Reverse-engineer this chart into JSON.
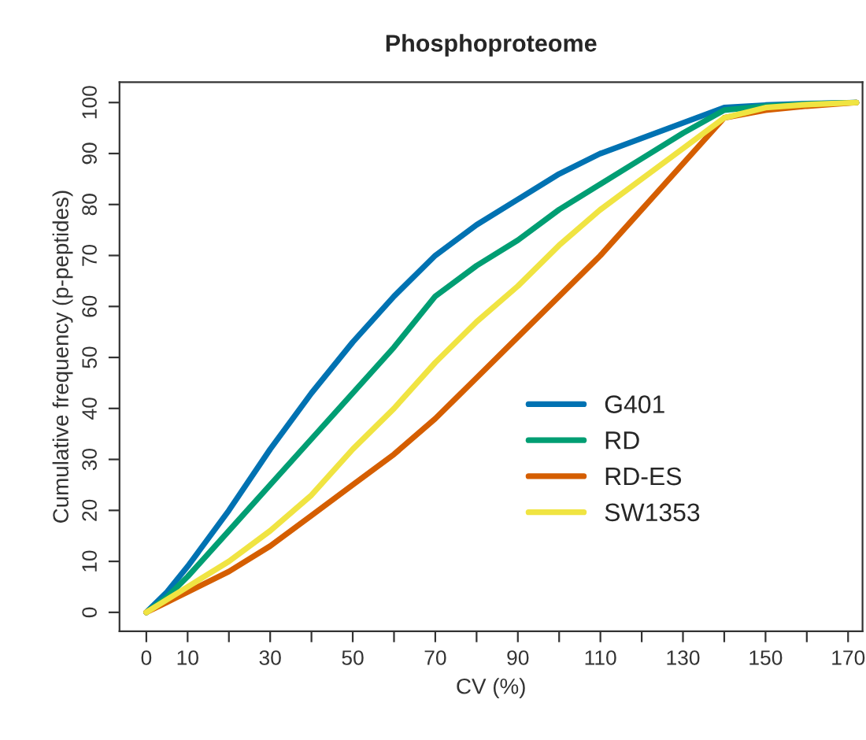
{
  "chart_data": {
    "type": "line",
    "title": "Phosphoproteome",
    "xlabel": "CV (%)",
    "ylabel": "Cumulative frequency (p-peptides)",
    "x": [
      0,
      5,
      10,
      20,
      30,
      40,
      50,
      60,
      70,
      80,
      90,
      100,
      110,
      120,
      130,
      140,
      150,
      160,
      172
    ],
    "series": [
      {
        "name": "G401",
        "color": "#0072b2",
        "values": [
          0,
          4,
          9,
          20,
          32,
          43,
          53,
          62,
          70,
          76,
          81,
          86,
          90,
          93,
          96,
          99,
          99.5,
          99.8,
          100
        ]
      },
      {
        "name": "RD",
        "color": "#009e73",
        "values": [
          0,
          3,
          7,
          16,
          25,
          34,
          43,
          52,
          62,
          68,
          73,
          79,
          84,
          89,
          94,
          98.5,
          99.3,
          99.7,
          100
        ]
      },
      {
        "name": "RD-ES",
        "color": "#d55e00",
        "values": [
          0,
          2,
          4,
          8,
          13,
          19,
          25,
          31,
          38,
          46,
          54,
          62,
          70,
          79,
          88,
          97,
          98.5,
          99.3,
          100
        ]
      },
      {
        "name": "SW1353",
        "color": "#f0e442",
        "values": [
          0,
          2.5,
          5,
          10,
          16,
          23,
          32,
          40,
          49,
          57,
          64,
          72,
          79,
          85,
          91,
          97,
          99,
          99.6,
          100
        ]
      }
    ],
    "xlim": [
      -6.5,
      173.5
    ],
    "ylim": [
      -3.7,
      104
    ],
    "xticks": [
      0,
      10,
      {
        "value": 20,
        "label": null
      },
      30,
      {
        "value": 40,
        "label": null
      },
      50,
      {
        "value": 60,
        "label": null
      },
      70,
      {
        "value": 80,
        "label": null
      },
      90,
      {
        "value": 100,
        "label": null
      },
      110,
      {
        "value": 120,
        "label": null
      },
      130,
      {
        "value": 140,
        "label": null
      },
      150,
      {
        "value": 160,
        "label": null
      },
      170
    ],
    "yticks": [
      0,
      10,
      20,
      30,
      40,
      50,
      60,
      70,
      80,
      90,
      100
    ],
    "grid": false,
    "legend": "bottom right",
    "marker": "none",
    "line_style": "solid"
  }
}
